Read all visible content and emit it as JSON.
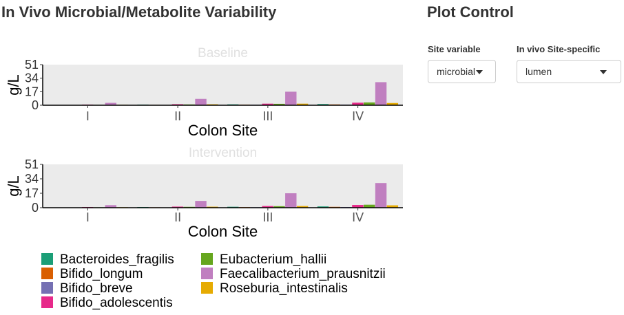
{
  "page": {
    "title": "In Vivo Microbial/Metabolite Variability",
    "control_title": "Plot Control"
  },
  "controls": {
    "site_variable": {
      "label": "Site variable",
      "value": "microbial"
    },
    "in_vivo_site_specific": {
      "label": "In vivo Site-specific",
      "value": "lumen"
    }
  },
  "colors": {
    "Bacteroides_fragilis": "#1b9e77",
    "Bifido_longum": "#d95f02",
    "Bifido_breve": "#7570b3",
    "Bifido_adolescentis": "#e7298a",
    "Eubacterium_hallii": "#66a61e",
    "Faecalibacterium_prausnitzii": "#c07fc0",
    "Roseburia_intestinalis": "#e6ab02",
    "panel_bg": "#ebebeb",
    "facet_title": "#e0e0e0"
  },
  "chart_data": [
    {
      "type": "bar",
      "title": "Baseline",
      "xlabel": "Colon Site",
      "ylabel": "g/L",
      "categories": [
        "I",
        "II",
        "III",
        "IV"
      ],
      "ylim": [
        0,
        51
      ],
      "yticks": [
        0,
        17,
        34,
        51
      ],
      "grid": false,
      "legend": "bottom",
      "series": [
        {
          "name": "Bacteroides_fragilis",
          "values": [
            0.4,
            0.8,
            1.1,
            1.5
          ]
        },
        {
          "name": "Bifido_longum",
          "values": [
            0.3,
            0.5,
            0.7,
            1.0
          ]
        },
        {
          "name": "Bifido_breve",
          "values": [
            0.2,
            0.4,
            0.6,
            0.8
          ]
        },
        {
          "name": "Bifido_adolescentis",
          "values": [
            0.8,
            1.3,
            2.0,
            3.2
          ]
        },
        {
          "name": "Eubacterium_hallii",
          "values": [
            0.5,
            1.0,
            1.8,
            3.5
          ]
        },
        {
          "name": "Faecalibacterium_prausnitzii",
          "values": [
            3.0,
            8.0,
            17.0,
            29.0
          ]
        },
        {
          "name": "Roseburia_intestinalis",
          "values": [
            0.6,
            1.2,
            2.0,
            2.8
          ]
        }
      ]
    },
    {
      "type": "bar",
      "title": "Intervention",
      "xlabel": "Colon Site",
      "ylabel": "g/L",
      "categories": [
        "I",
        "II",
        "III",
        "IV"
      ],
      "ylim": [
        0,
        51
      ],
      "yticks": [
        0,
        17,
        34,
        51
      ],
      "grid": false,
      "legend": "bottom",
      "series": [
        {
          "name": "Bacteroides_fragilis",
          "values": [
            0.4,
            0.8,
            1.1,
            1.5
          ]
        },
        {
          "name": "Bifido_longum",
          "values": [
            0.3,
            0.5,
            0.7,
            1.0
          ]
        },
        {
          "name": "Bifido_breve",
          "values": [
            0.2,
            0.4,
            0.6,
            0.8
          ]
        },
        {
          "name": "Bifido_adolescentis",
          "values": [
            0.8,
            1.3,
            2.0,
            3.2
          ]
        },
        {
          "name": "Eubacterium_hallii",
          "values": [
            0.5,
            1.0,
            1.8,
            3.5
          ]
        },
        {
          "name": "Faecalibacterium_prausnitzii",
          "values": [
            3.0,
            8.0,
            17.0,
            29.0
          ]
        },
        {
          "name": "Roseburia_intestinalis",
          "values": [
            0.6,
            1.2,
            2.0,
            2.8
          ]
        }
      ]
    }
  ]
}
